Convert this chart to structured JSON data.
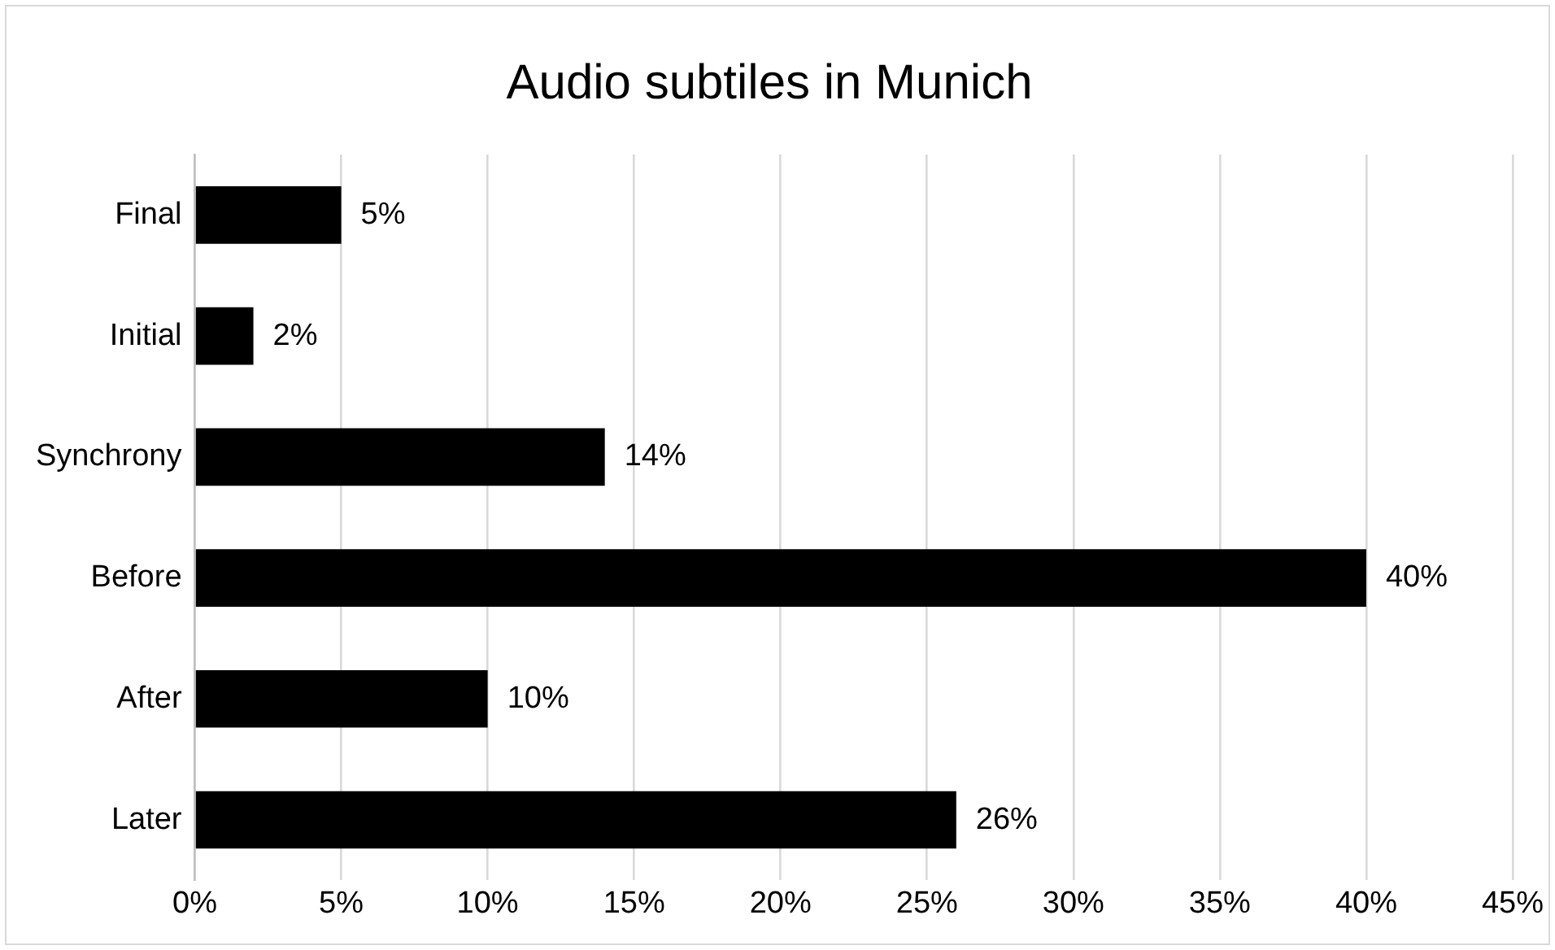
{
  "chart_data": {
    "type": "bar",
    "orientation": "horizontal",
    "title": "Audio subtiles in Munich",
    "categories": [
      "Final",
      "Initial",
      "Synchrony",
      "Before",
      "After",
      "Later"
    ],
    "values": [
      5,
      2,
      14,
      40,
      10,
      26
    ],
    "value_labels": [
      "5%",
      "2%",
      "14%",
      "40%",
      "10%",
      "26%"
    ],
    "color": "#000000",
    "xlim": [
      0,
      45
    ],
    "xticks": [
      {
        "value": 0,
        "label": "0%"
      },
      {
        "value": 5,
        "label": "5%"
      },
      {
        "value": 10,
        "label": "10%"
      },
      {
        "value": 15,
        "label": "15%"
      },
      {
        "value": 20,
        "label": "20%"
      },
      {
        "value": 25,
        "label": "25%"
      },
      {
        "value": 30,
        "label": "30%"
      },
      {
        "value": 35,
        "label": "35%"
      },
      {
        "value": 40,
        "label": "40%"
      },
      {
        "value": 45,
        "label": "45%"
      }
    ],
    "grid": "x",
    "legend": false
  }
}
